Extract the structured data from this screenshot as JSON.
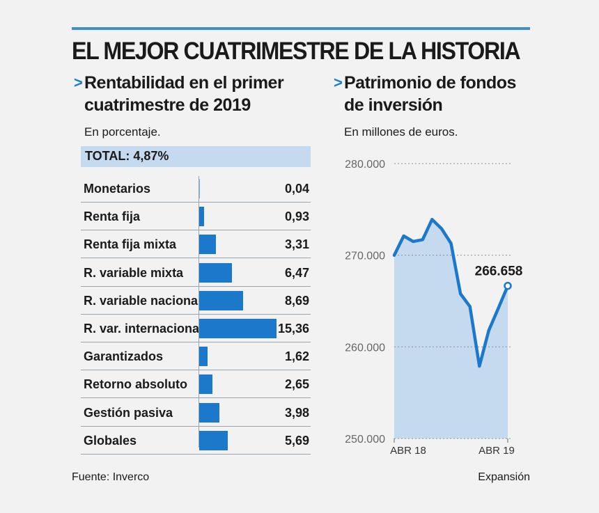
{
  "title": "EL MEJOR CUATRIMESTRE DE LA HISTORIA",
  "left": {
    "marker": ">",
    "subtitle_line1": "Rentabilidad en el primer",
    "subtitle_line2": "cuatrimestre de 2019",
    "unit": "En porcentaje.",
    "total": "TOTAL: 4,87%"
  },
  "right": {
    "marker": ">",
    "subtitle_line1": "Patrimonio de fondos",
    "subtitle_line2": "de inversión",
    "unit": "En millones de euros."
  },
  "footer": {
    "source": "Fuente: Inverco",
    "credit": "Expansión"
  },
  "colors": {
    "accent": "#1b78cb",
    "area": "#c6daef",
    "topbar": "#3d8fd1",
    "background": "#f2f2f2"
  },
  "chart_data": [
    {
      "type": "bar",
      "orientation": "horizontal",
      "categories": [
        "Monetarios",
        "Renta fija",
        "Renta fija mixta",
        "R. variable mixta",
        "R. variable nacional",
        "R. var. internacional",
        "Garantizados",
        "Retorno absoluto",
        "Gestión pasiva",
        "Globales"
      ],
      "values": [
        0.04,
        0.93,
        3.31,
        6.47,
        8.69,
        15.36,
        1.62,
        2.65,
        3.98,
        5.69
      ],
      "value_labels": [
        "0,04",
        "0,93",
        "3,31",
        "6,47",
        "8,69",
        "15,36",
        "1,62",
        "2,65",
        "3,98",
        "5,69"
      ],
      "xlim": [
        0,
        15.36
      ]
    },
    {
      "type": "area",
      "x_tick_labels": [
        "ABR 18",
        "ABR 19"
      ],
      "y_tick_labels": [
        "280.000",
        "270.000",
        "260.000",
        "250.000"
      ],
      "ylim": [
        250000,
        280000
      ],
      "grid": true,
      "x": [
        "2018-04",
        "2018-05",
        "2018-06",
        "2018-07",
        "2018-08",
        "2018-09",
        "2018-10",
        "2018-11",
        "2018-12",
        "2019-01",
        "2019-02",
        "2019-03",
        "2019-04"
      ],
      "values": [
        270000,
        272100,
        271500,
        271700,
        273900,
        272900,
        271300,
        265800,
        264400,
        257900,
        261800,
        264200,
        266658
      ],
      "last_label": "266.658"
    }
  ]
}
